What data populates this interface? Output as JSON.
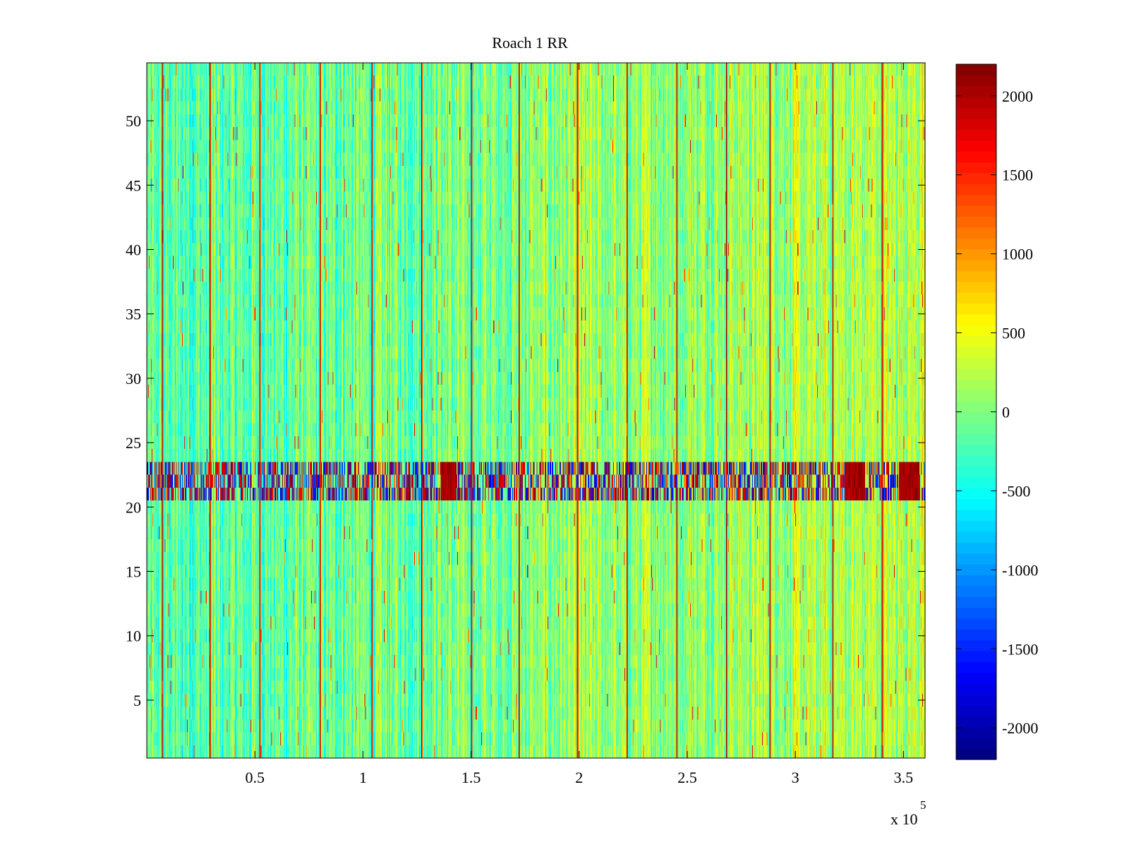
{
  "chart_data": {
    "type": "heatmap",
    "title": "Roach 1 RR",
    "xlabel": "",
    "ylabel": "",
    "xlim": [
      0,
      360000
    ],
    "ylim": [
      0.5,
      54.5
    ],
    "x_tick_values": [
      50000,
      100000,
      150000,
      200000,
      250000,
      300000,
      350000
    ],
    "x_tick_labels": [
      "0.5",
      "1",
      "1.5",
      "2",
      "2.5",
      "3",
      "3.5"
    ],
    "x_multiplier_base": "x 10",
    "x_multiplier_exponent": "5",
    "y_ticks": [
      5,
      10,
      15,
      20,
      25,
      30,
      35,
      40,
      45,
      50
    ],
    "rows": 54,
    "columns_approx": 1080,
    "colormap": "jet",
    "colorbar": {
      "clim": [
        -2200,
        2200
      ],
      "ticks": [
        2000,
        1500,
        1000,
        500,
        0,
        -500,
        -1000,
        -1500,
        -2000
      ]
    },
    "background_mean_value": -200,
    "strong_artifact_columns_x": [
      7000,
      29000,
      52000,
      80000,
      104000,
      127000,
      150000,
      172000,
      199000,
      222000,
      245000,
      268000,
      288000,
      317000,
      340000
    ],
    "artifact_row_band": [
      21,
      23
    ],
    "artifact_row_band_note": "Rows 21–23 show strong alternating red/blue bursts along x",
    "hot_cluster_x_ranges": [
      [
        136000,
        143000
      ],
      [
        323000,
        332000
      ],
      [
        348000,
        357000
      ]
    ]
  }
}
